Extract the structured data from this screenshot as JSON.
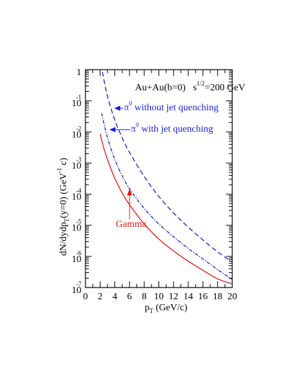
{
  "chart_data": {
    "type": "line",
    "header": {
      "system": "Au+Au(b=0)",
      "energy_base": "s",
      "energy_sup": "1/2",
      "energy_value": "=200 GeV"
    },
    "xlabel": {
      "base": "p",
      "sub": "T",
      "rest": " (GeV/c)"
    },
    "ylabel": {
      "p1": "dN/dydp",
      "sub": "T",
      "p2": "(y=0) (GeV",
      "sup": "-1",
      "p3": " c)"
    },
    "xlim": [
      0,
      20
    ],
    "ylim": [
      1e-07,
      1
    ],
    "yscale": "log",
    "xticks": [
      "0",
      "2",
      "4",
      "6",
      "8",
      "10",
      "12",
      "14",
      "16",
      "18",
      "20"
    ],
    "yticks": [
      {
        "base": "1",
        "exp": ""
      },
      {
        "base": "10",
        "exp": "-1"
      },
      {
        "base": "10",
        "exp": "-2"
      },
      {
        "base": "10",
        "exp": "-3"
      },
      {
        "base": "10",
        "exp": "-4"
      },
      {
        "base": "10",
        "exp": "-5"
      },
      {
        "base": "10",
        "exp": "-6"
      },
      {
        "base": "10",
        "exp": "-7"
      }
    ],
    "series": [
      {
        "style": "dashed",
        "color": "#1a1ad8",
        "x": [
          2.3,
          3,
          4,
          5,
          6,
          8,
          10,
          12,
          14,
          16,
          18,
          20
        ],
        "y": [
          0.85,
          0.14,
          0.024,
          0.0065,
          0.0022,
          0.00037,
          8.4e-05,
          2.5e-05,
          8.7e-06,
          3.4e-06,
          1.4e-06,
          6.6e-07
        ]
      },
      {
        "style": "dash-dot",
        "color": "#1a1ad8",
        "x": [
          2.2,
          3,
          4,
          5,
          6,
          8,
          10,
          12,
          14,
          16,
          18,
          20
        ],
        "y": [
          0.04,
          0.0065,
          0.0013,
          0.00039,
          0.00015,
          3.5e-05,
          1.1e-05,
          4.3e-06,
          1.8e-06,
          8.3e-07,
          3.8e-07,
          1.8e-07
        ]
      },
      {
        "name": "Gamma",
        "style": "solid",
        "color": "#e01818",
        "x": [
          2.0,
          2.5,
          3,
          4,
          5,
          6,
          8,
          10,
          12,
          14,
          16,
          18,
          20
        ],
        "y": [
          0.0085,
          0.003,
          0.0013,
          0.00032,
          0.00011,
          4.6e-05,
          1.1e-05,
          3.6e-06,
          1.5e-06,
          7e-07,
          3.6e-07,
          1.9e-07,
          1.3e-07
        ]
      }
    ],
    "annotations": {
      "pi_without": {
        "symbol": "π",
        "sup": "0",
        "text": " without jet quenching",
        "color": "#1a1ad8"
      },
      "pi_with": {
        "symbol": "π",
        "sup": "0",
        "text": " with jet quenching",
        "color": "#1a1ad8"
      },
      "gamma": {
        "text": "Gamma",
        "color": "#e01818"
      }
    }
  }
}
